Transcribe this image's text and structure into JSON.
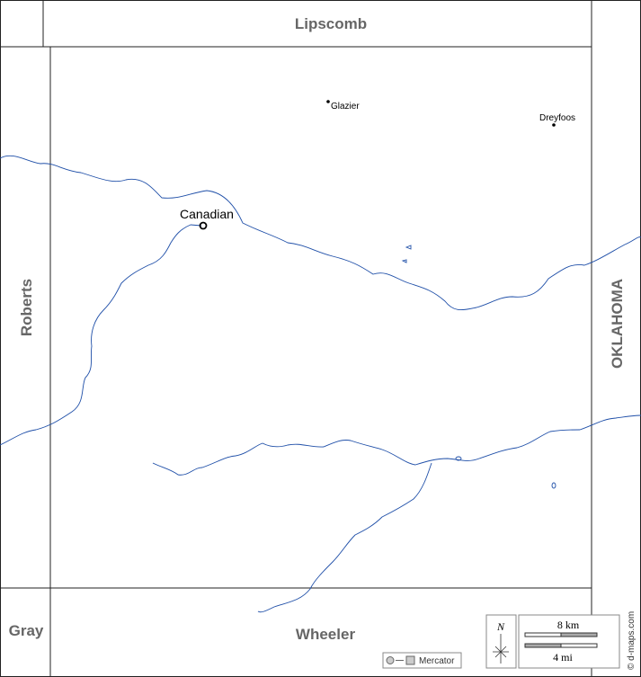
{
  "map": {
    "neighbors": {
      "north": "Lipscomb",
      "west": "Roberts",
      "east": "OKLAHOMA",
      "southwest": "Gray",
      "south": "Wheeler"
    },
    "towns": [
      {
        "name": "Canadian"
      },
      {
        "name": "Glazier"
      },
      {
        "name": "Dreyfoos"
      }
    ],
    "legend": {
      "north": "N",
      "scale_km": "8 km",
      "scale_mi": "4 mi",
      "projection": "Mercator",
      "credit": "© d-maps.com"
    }
  }
}
